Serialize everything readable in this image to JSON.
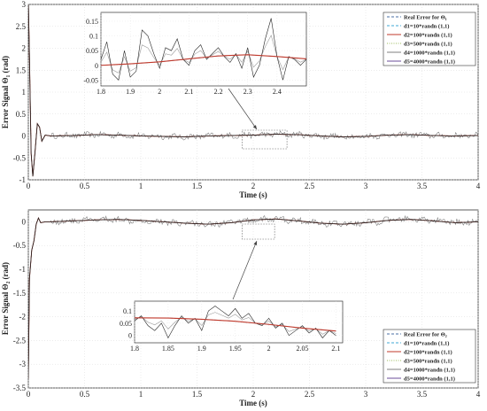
{
  "chart_data": [
    {
      "type": "line",
      "title": "",
      "xlabel": "Time (s)",
      "ylabel": "Error Signal Θ₁ (rad)",
      "xlim": [
        0,
        4
      ],
      "ylim": [
        -1,
        3
      ],
      "xticks": [
        "0",
        "0.5",
        "1",
        "1.5",
        "2",
        "2.5",
        "3",
        "3.5",
        "4"
      ],
      "yticks": [
        "3",
        "2.5",
        "2",
        "1.5",
        "1",
        "0.5",
        "0",
        "-0.5",
        "-1"
      ],
      "grid": true,
      "legend_position": "top-right",
      "legend": [
        {
          "name": "Real Error for Θ₁",
          "color": "#4a6fa5",
          "dash": "3,2"
        },
        {
          "name": "d1=10*randn (1,1)",
          "color": "#3fa7d6",
          "dash": "3,2"
        },
        {
          "name": "d2=100*randn (1,1)",
          "color": "#c0392b",
          "dash": ""
        },
        {
          "name": "d3=500*randn (1,1)",
          "color": "#9bbb59",
          "dash": "1,1.5"
        },
        {
          "name": "d4=1000*randn (1,1)",
          "color": "#7f7f7f",
          "dash": ""
        },
        {
          "name": "d5=4000*randn (1,1)",
          "color": "#6b4c9a",
          "dash": ""
        }
      ],
      "transient": [
        [
          0,
          3.1
        ],
        [
          0.01,
          1.8
        ],
        [
          0.025,
          -0.4
        ],
        [
          0.04,
          -0.92
        ],
        [
          0.06,
          -0.35
        ],
        [
          0.08,
          0.28
        ],
        [
          0.1,
          0.2
        ],
        [
          0.12,
          -0.12
        ],
        [
          0.15,
          0.02
        ],
        [
          0.2,
          0.0
        ]
      ],
      "smooth_error": {
        "x": [
          0.2,
          0.4,
          0.6,
          0.8,
          1.0,
          1.2,
          1.4,
          1.6,
          1.8,
          2.0,
          2.2,
          2.4,
          2.6,
          2.8,
          3.0,
          3.2,
          3.4,
          3.6,
          3.8,
          4.0
        ],
        "y": [
          0.0,
          0.01,
          0.03,
          0.02,
          0.0,
          -0.01,
          -0.02,
          0.0,
          0.01,
          0.02,
          0.04,
          0.03,
          0.0,
          -0.02,
          -0.01,
          0.02,
          0.03,
          0.01,
          0.0,
          0.01
        ]
      },
      "noise_amplitude": 0.06,
      "inset": {
        "xlim": [
          1.8,
          2.5
        ],
        "ylim": [
          -0.07,
          0.18
        ],
        "xticks": [
          "1.8",
          "1.9",
          "2",
          "2.1",
          "2.2",
          "2.3",
          "2.4"
        ],
        "yticks": [
          "0.15",
          "0.1",
          "0.05",
          "0",
          "-0.05"
        ],
        "smooth": {
          "x": [
            1.8,
            1.9,
            2.0,
            2.1,
            2.2,
            2.3,
            2.4,
            2.5
          ],
          "y": [
            0.0,
            0.005,
            0.012,
            0.022,
            0.032,
            0.036,
            0.03,
            0.022
          ]
        },
        "noisy": {
          "x": [
            1.8,
            1.82,
            1.84,
            1.86,
            1.88,
            1.9,
            1.92,
            1.94,
            1.96,
            1.98,
            2.0,
            2.02,
            2.04,
            2.06,
            2.08,
            2.1,
            2.12,
            2.14,
            2.16,
            2.18,
            2.2,
            2.22,
            2.24,
            2.26,
            2.28,
            2.3,
            2.32,
            2.34,
            2.36,
            2.38,
            2.4,
            2.42,
            2.44,
            2.46,
            2.48,
            2.5
          ],
          "y": [
            0.02,
            0.08,
            -0.03,
            -0.05,
            0.05,
            -0.04,
            -0.02,
            0.12,
            0.1,
            0.04,
            -0.01,
            0.06,
            0.05,
            0.09,
            0.02,
            0.0,
            0.05,
            0.07,
            0.02,
            0.04,
            0.06,
            0.03,
            0.01,
            0.04,
            -0.01,
            0.06,
            -0.04,
            0.0,
            0.09,
            0.16,
            0.03,
            -0.05,
            0.03,
            0.02,
            0.0,
            0.02
          ]
        }
      }
    },
    {
      "type": "line",
      "title": "",
      "xlabel": "Time (s)",
      "ylabel": "Error Signal Θ₂ (rad)",
      "xlim": [
        0,
        4
      ],
      "ylim": [
        -3.5,
        0.25
      ],
      "xticks": [
        "0",
        "0.5",
        "1",
        "1.5",
        "2",
        "2.5",
        "3",
        "3.5",
        "4"
      ],
      "yticks": [
        "0",
        "-0.5",
        "-1",
        "-1.5",
        "-2",
        "-2.5",
        "-3",
        "-3.5"
      ],
      "grid": true,
      "legend_position": "bottom-right",
      "legend": [
        {
          "name": "Real Error for Θ₂",
          "color": "#4a6fa5",
          "dash": "3,2"
        },
        {
          "name": "d1=10*randn (1,1)",
          "color": "#3fa7d6",
          "dash": "3,2"
        },
        {
          "name": "d2=100*randn (1,1)",
          "color": "#c0392b",
          "dash": ""
        },
        {
          "name": "d3=500*randn (1,1)",
          "color": "#9bbb59",
          "dash": "1,1.5"
        },
        {
          "name": "d4=1000*randn (1,1)",
          "color": "#7f7f7f",
          "dash": ""
        },
        {
          "name": "d5=4000*randn (1,1)",
          "color": "#6b4c9a",
          "dash": ""
        }
      ],
      "transient": [
        [
          0,
          -3.3
        ],
        [
          0.01,
          -1.2
        ],
        [
          0.03,
          -0.6
        ],
        [
          0.05,
          -0.4
        ],
        [
          0.07,
          -0.05
        ],
        [
          0.09,
          0.08
        ],
        [
          0.11,
          -0.02
        ],
        [
          0.15,
          0.0
        ],
        [
          0.2,
          0.0
        ]
      ],
      "smooth_error": {
        "x": [
          0.2,
          0.4,
          0.6,
          0.8,
          1.0,
          1.2,
          1.4,
          1.6,
          1.8,
          2.0,
          2.2,
          2.4,
          2.6,
          2.8,
          3.0,
          3.2,
          3.4,
          3.6,
          3.8,
          4.0
        ],
        "y": [
          0.0,
          0.02,
          0.04,
          0.05,
          0.03,
          0.0,
          -0.03,
          -0.05,
          -0.02,
          0.04,
          0.06,
          0.02,
          -0.03,
          -0.05,
          -0.02,
          0.03,
          0.05,
          0.02,
          -0.02,
          0.0
        ]
      },
      "noise_amplitude": 0.06,
      "inset": {
        "xlim": [
          1.8,
          2.11
        ],
        "ylim": [
          -0.03,
          0.14
        ],
        "xticks": [
          "1.8",
          "1.85",
          "1.9",
          "1.95",
          "2",
          "2.05",
          "2.1"
        ],
        "yticks": [
          "0.1",
          "0.05",
          "0"
        ],
        "smooth": {
          "x": [
            1.8,
            1.85,
            1.9,
            1.95,
            2.0,
            2.05,
            2.1
          ],
          "y": [
            0.072,
            0.071,
            0.066,
            0.058,
            0.045,
            0.03,
            0.018
          ]
        },
        "noisy": {
          "x": [
            1.8,
            1.81,
            1.82,
            1.83,
            1.84,
            1.85,
            1.86,
            1.87,
            1.88,
            1.89,
            1.9,
            1.91,
            1.92,
            1.93,
            1.94,
            1.95,
            1.96,
            1.97,
            1.98,
            1.99,
            2.0,
            2.01,
            2.02,
            2.03,
            2.04,
            2.05,
            2.06,
            2.07,
            2.08,
            2.09,
            2.1
          ],
          "y": [
            0.06,
            0.08,
            0.04,
            0.02,
            0.05,
            -0.01,
            0.04,
            0.08,
            0.05,
            0.07,
            0.02,
            0.1,
            0.12,
            0.1,
            0.08,
            0.11,
            0.07,
            0.09,
            0.05,
            0.04,
            0.07,
            0.03,
            0.05,
            0.0,
            0.02,
            0.04,
            0.01,
            0.03,
            -0.01,
            0.02,
            0.0
          ]
        }
      }
    }
  ]
}
